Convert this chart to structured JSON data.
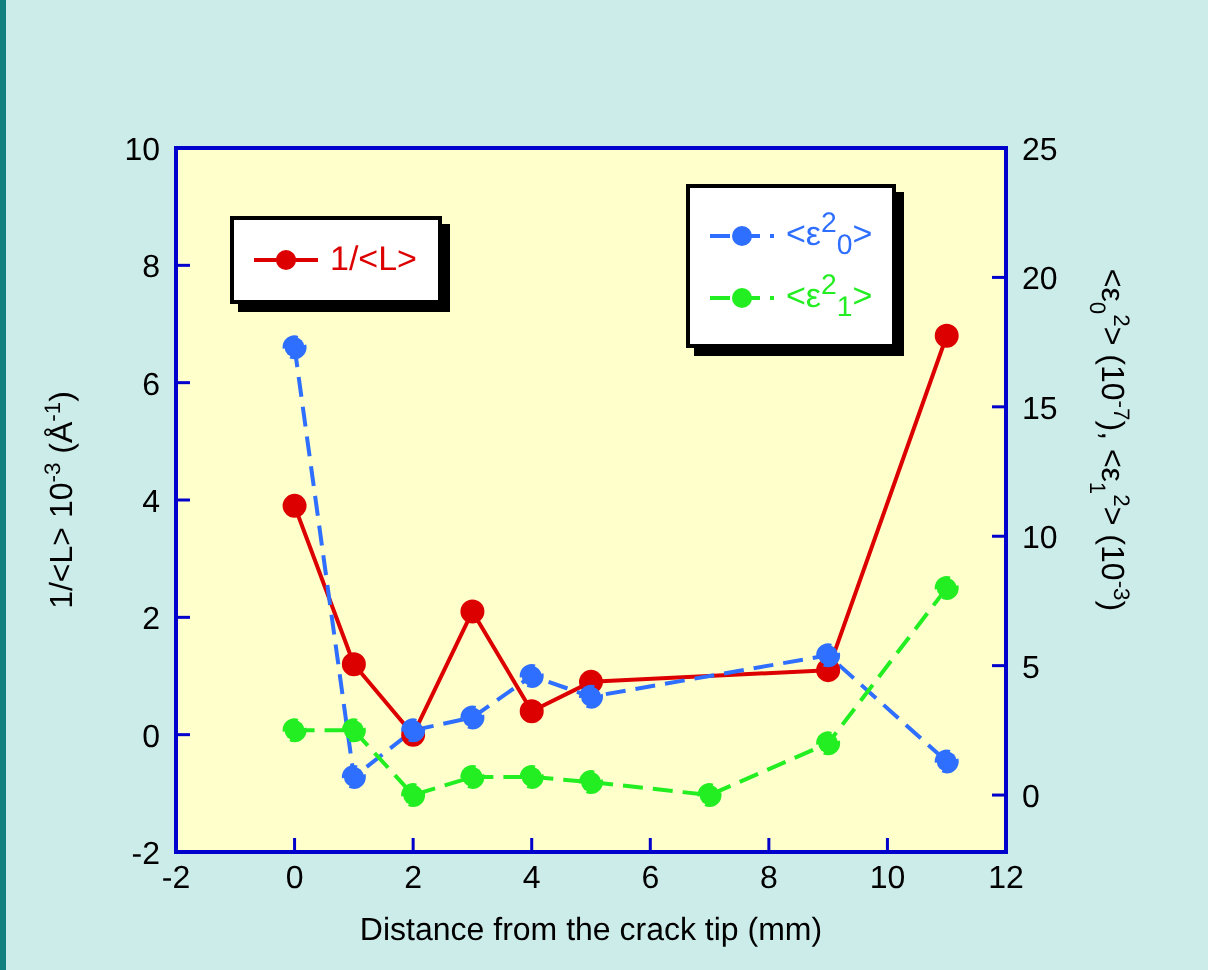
{
  "chart_data": {
    "type": "line",
    "xlabel": "Distance from the crack tip (mm)",
    "ylabel": "1/<L> 10$^{-3}$ (Å$^{-1}$)",
    "y2label": "<ε$_{0}$$^{2}$> (10$^{-7}$), <ε$_{1}$$^{2}$> (10$^{-3}$)",
    "x": [
      0,
      1,
      2,
      3,
      4,
      5,
      9,
      11
    ],
    "xlim": [
      -2,
      12
    ],
    "xticks": [
      -2,
      0,
      2,
      4,
      6,
      8,
      10,
      12
    ],
    "ylim": [
      -2,
      10
    ],
    "yticks": [
      -2,
      0,
      2,
      4,
      6,
      8,
      10
    ],
    "y2lim": [
      -2.2,
      25
    ],
    "y2ticks": [
      0,
      5,
      10,
      15,
      20,
      25
    ],
    "legend": "top",
    "marker": "circle",
    "series": [
      {
        "name": "1/<L>",
        "color": "#dd0000",
        "line_style": "solid",
        "values": [
          3.9,
          1.2,
          0,
          2.1,
          0.4,
          0.9,
          1.1,
          6.8
        ]
      },
      {
        "name": "<ε$^{2}$$_{0}$>",
        "color": "#2f6fff",
        "axis": "y2",
        "line_style": "dashed",
        "values": [
          17.3,
          0.7,
          2.5,
          3.0,
          4.6,
          3.8,
          5.4,
          1.3
        ]
      },
      {
        "name": "<ε$^{2}$$_{1}$>",
        "color": "#22ee22",
        "axis": "y2",
        "line_style": "dashed",
        "x": [
          0,
          1,
          2,
          3,
          4,
          5,
          7,
          9,
          11
        ],
        "values": [
          2.5,
          2.5,
          0,
          0.7,
          0.7,
          0.5,
          0,
          2.0,
          8.0
        ]
      }
    ]
  }
}
